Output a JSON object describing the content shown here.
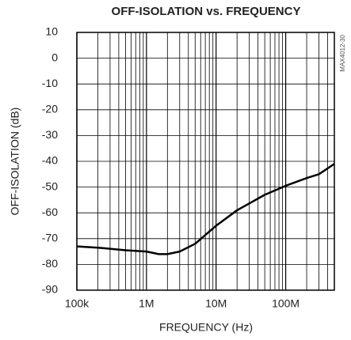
{
  "chart_data": {
    "type": "line",
    "title": "OFF-ISOLATION vs. FREQUENCY",
    "x_label": "FREQUENCY (Hz)",
    "y_label": "OFF-ISOLATION (dB)",
    "figure_id": "MAX4012-30",
    "x_scale": "log",
    "x": [
      100000,
      200000,
      500000,
      1000000,
      1500000,
      2000000,
      3000000,
      5000000,
      10000000,
      20000000,
      50000000,
      100000000,
      200000000,
      300000000,
      500000000
    ],
    "series": [
      {
        "color": "#000000",
        "values": [
          -73,
          -73.5,
          -74.5,
          -75,
          -76,
          -76,
          -75,
          -72,
          -65,
          -59,
          -53,
          -49.5,
          -46.5,
          -45,
          -41
        ]
      }
    ],
    "xlim": [
      100000,
      500000000
    ],
    "xticks": [
      {
        "value": 100000,
        "label": "100k"
      },
      {
        "value": 1000000,
        "label": "1M"
      },
      {
        "value": 10000000,
        "label": "10M"
      },
      {
        "value": 100000000,
        "label": "100M"
      }
    ],
    "ylim": [
      -90,
      10
    ],
    "yticks": [
      -90,
      -80,
      -70,
      -60,
      -50,
      -40,
      -30,
      -20,
      -10,
      0,
      10
    ],
    "grid": true,
    "minor_grid": true
  }
}
